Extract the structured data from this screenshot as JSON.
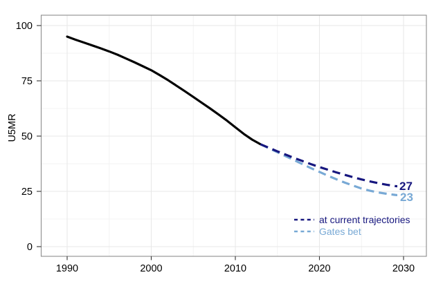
{
  "chart_data": {
    "type": "line",
    "title": "",
    "xlabel": "",
    "ylabel": "U5MR",
    "x_ticks": [
      1990,
      2000,
      2010,
      2020,
      2030
    ],
    "y_ticks": [
      0,
      25,
      50,
      75,
      100
    ],
    "x_minor_ticks": [
      1995,
      2005,
      2015,
      2025
    ],
    "y_minor_ticks": [
      12.5,
      37.5,
      62.5,
      87.5
    ],
    "xlim": [
      1986.9,
      2032.7
    ],
    "ylim": [
      -4.4,
      104.7
    ],
    "grid": "major and minor, light gray, white background, gray panel border",
    "legend_position": "inside bottom-right",
    "series": [
      {
        "name": "historical",
        "style": "solid",
        "color": "#000000",
        "x": [
          1990,
          1991,
          1992,
          1993,
          1994,
          1995,
          1996,
          1997,
          1998,
          1999,
          2000,
          2001,
          2002,
          2003,
          2004,
          2005,
          2006,
          2007,
          2008,
          2009,
          2010,
          2011,
          2012,
          2013
        ],
        "values": [
          95.0,
          93.6,
          92.3,
          91.0,
          89.7,
          88.3,
          86.8,
          85.1,
          83.4,
          81.6,
          79.8,
          77.6,
          75.3,
          72.8,
          70.3,
          67.7,
          65.1,
          62.5,
          59.8,
          57.0,
          54.0,
          51.0,
          48.4,
          46.3
        ]
      },
      {
        "name": "at current trajectories",
        "style": "dashed",
        "color": "#17177f",
        "x": [
          2013,
          2014,
          2015,
          2016,
          2017,
          2018,
          2019,
          2020,
          2021,
          2022,
          2023,
          2024,
          2025,
          2026,
          2027,
          2028,
          2029,
          2030
        ],
        "values": [
          46.3,
          44.7,
          43.1,
          41.6,
          40.1,
          38.7,
          37.3,
          36.0,
          34.8,
          33.6,
          32.5,
          31.4,
          30.4,
          29.5,
          28.7,
          28.0,
          27.4,
          27.0
        ]
      },
      {
        "name": "Gates bet",
        "style": "dashed",
        "color": "#78a9d5",
        "x": [
          2013,
          2014,
          2015,
          2016,
          2017,
          2018,
          2019,
          2020,
          2021,
          2022,
          2023,
          2024,
          2025,
          2026,
          2027,
          2028,
          2029,
          2030
        ],
        "values": [
          46.3,
          44.5,
          42.7,
          40.9,
          39.1,
          37.3,
          35.5,
          33.8,
          32.1,
          30.5,
          29.0,
          27.6,
          26.3,
          25.3,
          24.5,
          23.9,
          23.4,
          23.0
        ]
      }
    ],
    "end_labels": {
      "current": {
        "text": "27",
        "value": 27,
        "color": "#17177f"
      },
      "gates": {
        "text": "23",
        "value": 23,
        "color": "#78a9d5"
      }
    },
    "legend": [
      {
        "label": "at current trajectories",
        "color": "#17177f"
      },
      {
        "label": "Gates bet",
        "color": "#78a9d5"
      }
    ],
    "colors": {
      "grid_major": "#e7e7e7",
      "grid_minor": "#f3f3f3",
      "panel_border": "#8c8c8c",
      "tick": "#333333",
      "tick_label": "#000000"
    }
  }
}
